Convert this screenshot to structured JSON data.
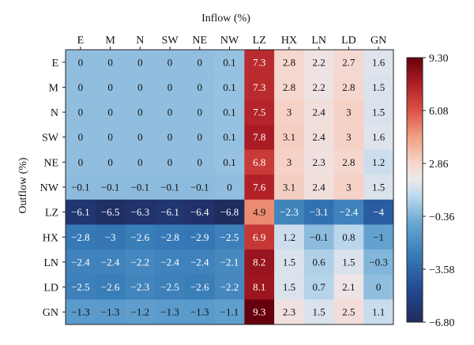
{
  "chart_data": {
    "type": "heatmap",
    "title": "Inflow (%)",
    "xlabel": "Inflow (%)",
    "ylabel": "Outflow (%)",
    "x_categories": [
      "E",
      "M",
      "N",
      "SW",
      "NE",
      "NW",
      "LZ",
      "HX",
      "LN",
      "LD",
      "GN"
    ],
    "y_categories": [
      "E",
      "M",
      "N",
      "SW",
      "NE",
      "NW",
      "LZ",
      "HX",
      "LN",
      "LD",
      "GN"
    ],
    "values": [
      [
        0,
        0,
        0,
        0,
        0,
        0.1,
        7.3,
        2.8,
        2.2,
        2.7,
        1.6
      ],
      [
        0,
        0,
        0,
        0,
        0,
        0.1,
        7.3,
        2.8,
        2.2,
        2.8,
        1.5
      ],
      [
        0,
        0,
        0,
        0,
        0,
        0.1,
        7.5,
        3,
        2.4,
        3,
        1.5
      ],
      [
        0,
        0,
        0,
        0,
        0,
        0.1,
        7.8,
        3.1,
        2.4,
        3,
        1.6
      ],
      [
        0,
        0,
        0,
        0,
        0,
        0.1,
        6.8,
        3,
        2.3,
        2.8,
        1.2
      ],
      [
        -0.1,
        -0.1,
        -0.1,
        -0.1,
        -0.1,
        0,
        7.6,
        3.1,
        2.4,
        3,
        1.5
      ],
      [
        -6.1,
        -6.5,
        -6.3,
        -6.1,
        -6.4,
        -6.8,
        4.9,
        -2.3,
        -3.1,
        -2.4,
        -4
      ],
      [
        -2.8,
        -3,
        -2.6,
        -2.8,
        -2.9,
        -2.5,
        6.9,
        1.2,
        -0.1,
        0.8,
        -1
      ],
      [
        -2.4,
        -2.4,
        -2.2,
        -2.4,
        -2.4,
        -2.1,
        8.2,
        1.5,
        0.6,
        1.5,
        -0.3
      ],
      [
        -2.5,
        -2.6,
        -2.3,
        -2.5,
        -2.6,
        -2.2,
        8.1,
        1.5,
        0.7,
        2.1,
        0
      ],
      [
        -1.3,
        -1.3,
        -1.2,
        -1.3,
        -1.3,
        -1.1,
        9.3,
        2.3,
        1.5,
        2.5,
        1.1
      ]
    ],
    "colorbar": {
      "min": -6.8,
      "max": 9.3,
      "ticks": [
        9.3,
        6.08,
        2.86,
        -0.36,
        -3.58,
        -6.8
      ],
      "tick_labels": [
        "9.30",
        "6.08",
        "2.86",
        "−0.36",
        "−3.58",
        "−6.80"
      ],
      "colormap": "RdBu_r"
    },
    "colors": {
      "low": "#1f2c5e",
      "mid": "#f6eeee",
      "high": "#67000d"
    }
  }
}
